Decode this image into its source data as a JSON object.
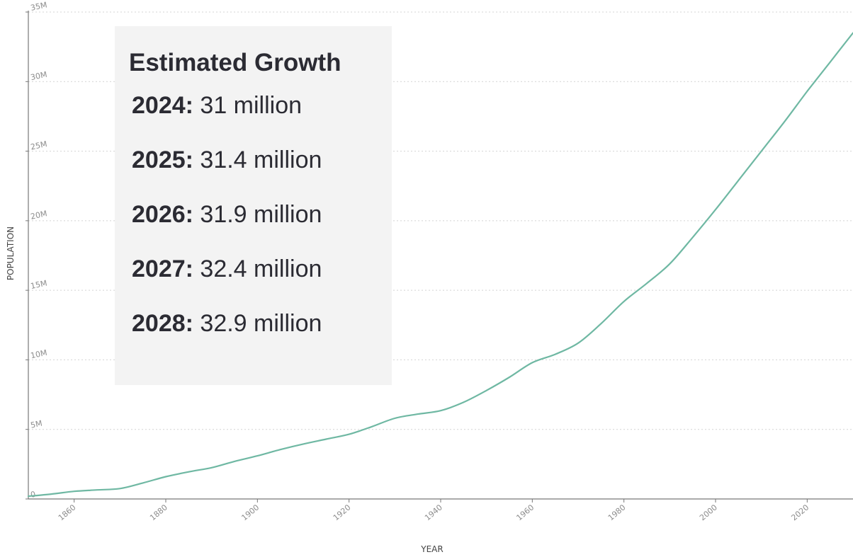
{
  "chart_data": {
    "type": "line",
    "xlabel": "YEAR",
    "ylabel": "POPULATION",
    "xlim": [
      1850,
      2030
    ],
    "ylim": [
      0,
      35000000
    ],
    "x_ticks": [
      1860,
      1880,
      1900,
      1920,
      1940,
      1960,
      1980,
      2000,
      2020
    ],
    "x_tick_labels": [
      "1860",
      "1880",
      "1900",
      "1920",
      "1940",
      "1960",
      "1980",
      "2000",
      "2020"
    ],
    "y_ticks": [
      0,
      5000000,
      10000000,
      15000000,
      20000000,
      25000000,
      30000000,
      35000000
    ],
    "y_tick_labels": [
      "0",
      "5M",
      "10M",
      "15M",
      "20M",
      "25M",
      "30M",
      "35M"
    ],
    "grid": "horizontal dotted",
    "line_color": "#6fb8a3",
    "series": [
      {
        "x": [
          1850,
          1855,
          1860,
          1865,
          1870,
          1875,
          1880,
          1885,
          1890,
          1895,
          1900,
          1905,
          1910,
          1915,
          1920,
          1925,
          1930,
          1935,
          1940,
          1945,
          1950,
          1955,
          1960,
          1965,
          1970,
          1975,
          1980,
          1985,
          1990,
          1995,
          2000,
          2005,
          2010,
          2015,
          2020,
          2025,
          2030
        ],
        "values": [
          200000,
          350000,
          550000,
          650000,
          750000,
          1150000,
          1600000,
          1950000,
          2250000,
          2700000,
          3100000,
          3550000,
          3950000,
          4300000,
          4650000,
          5200000,
          5800000,
          6100000,
          6350000,
          6950000,
          7800000,
          8750000,
          9800000,
          10400000,
          11200000,
          12600000,
          14200000,
          15500000,
          16900000,
          18800000,
          20800000,
          22900000,
          25000000,
          27100000,
          29300000,
          31400000,
          33500000
        ]
      }
    ]
  },
  "annotation": {
    "title": "Estimated Growth",
    "rows": [
      {
        "year": "2024:",
        "value": " 31 million"
      },
      {
        "year": "2025:",
        "value": " 31.4 million"
      },
      {
        "year": "2026:",
        "value": " 31.9 million"
      },
      {
        "year": "2027:",
        "value": " 32.4 million"
      },
      {
        "year": "2028:",
        "value": " 32.9 million"
      }
    ]
  }
}
